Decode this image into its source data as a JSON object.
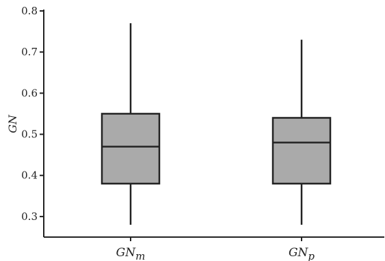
{
  "chart_data": {
    "type": "box",
    "ylabel": "GN",
    "xlabel": "",
    "ylim": [
      0.25,
      0.8
    ],
    "yticks": [
      0.3,
      0.4,
      0.5,
      0.6,
      0.7,
      0.8
    ],
    "ytick_labels": [
      "0.3",
      "0.4",
      "0.5",
      "0.6",
      "0.7",
      "0.8"
    ],
    "categories": [
      {
        "base": "GN",
        "sub": "m"
      },
      {
        "base": "GN",
        "sub": "p"
      }
    ],
    "boxes": [
      {
        "whisker_low": 0.28,
        "q1": 0.38,
        "median": 0.47,
        "q3": 0.55,
        "whisker_high": 0.77
      },
      {
        "whisker_low": 0.28,
        "q1": 0.38,
        "median": 0.48,
        "q3": 0.54,
        "whisker_high": 0.73
      }
    ],
    "box_fill": "#aaaaaa",
    "line_color": "#222222",
    "grid": false,
    "legend": "none"
  }
}
